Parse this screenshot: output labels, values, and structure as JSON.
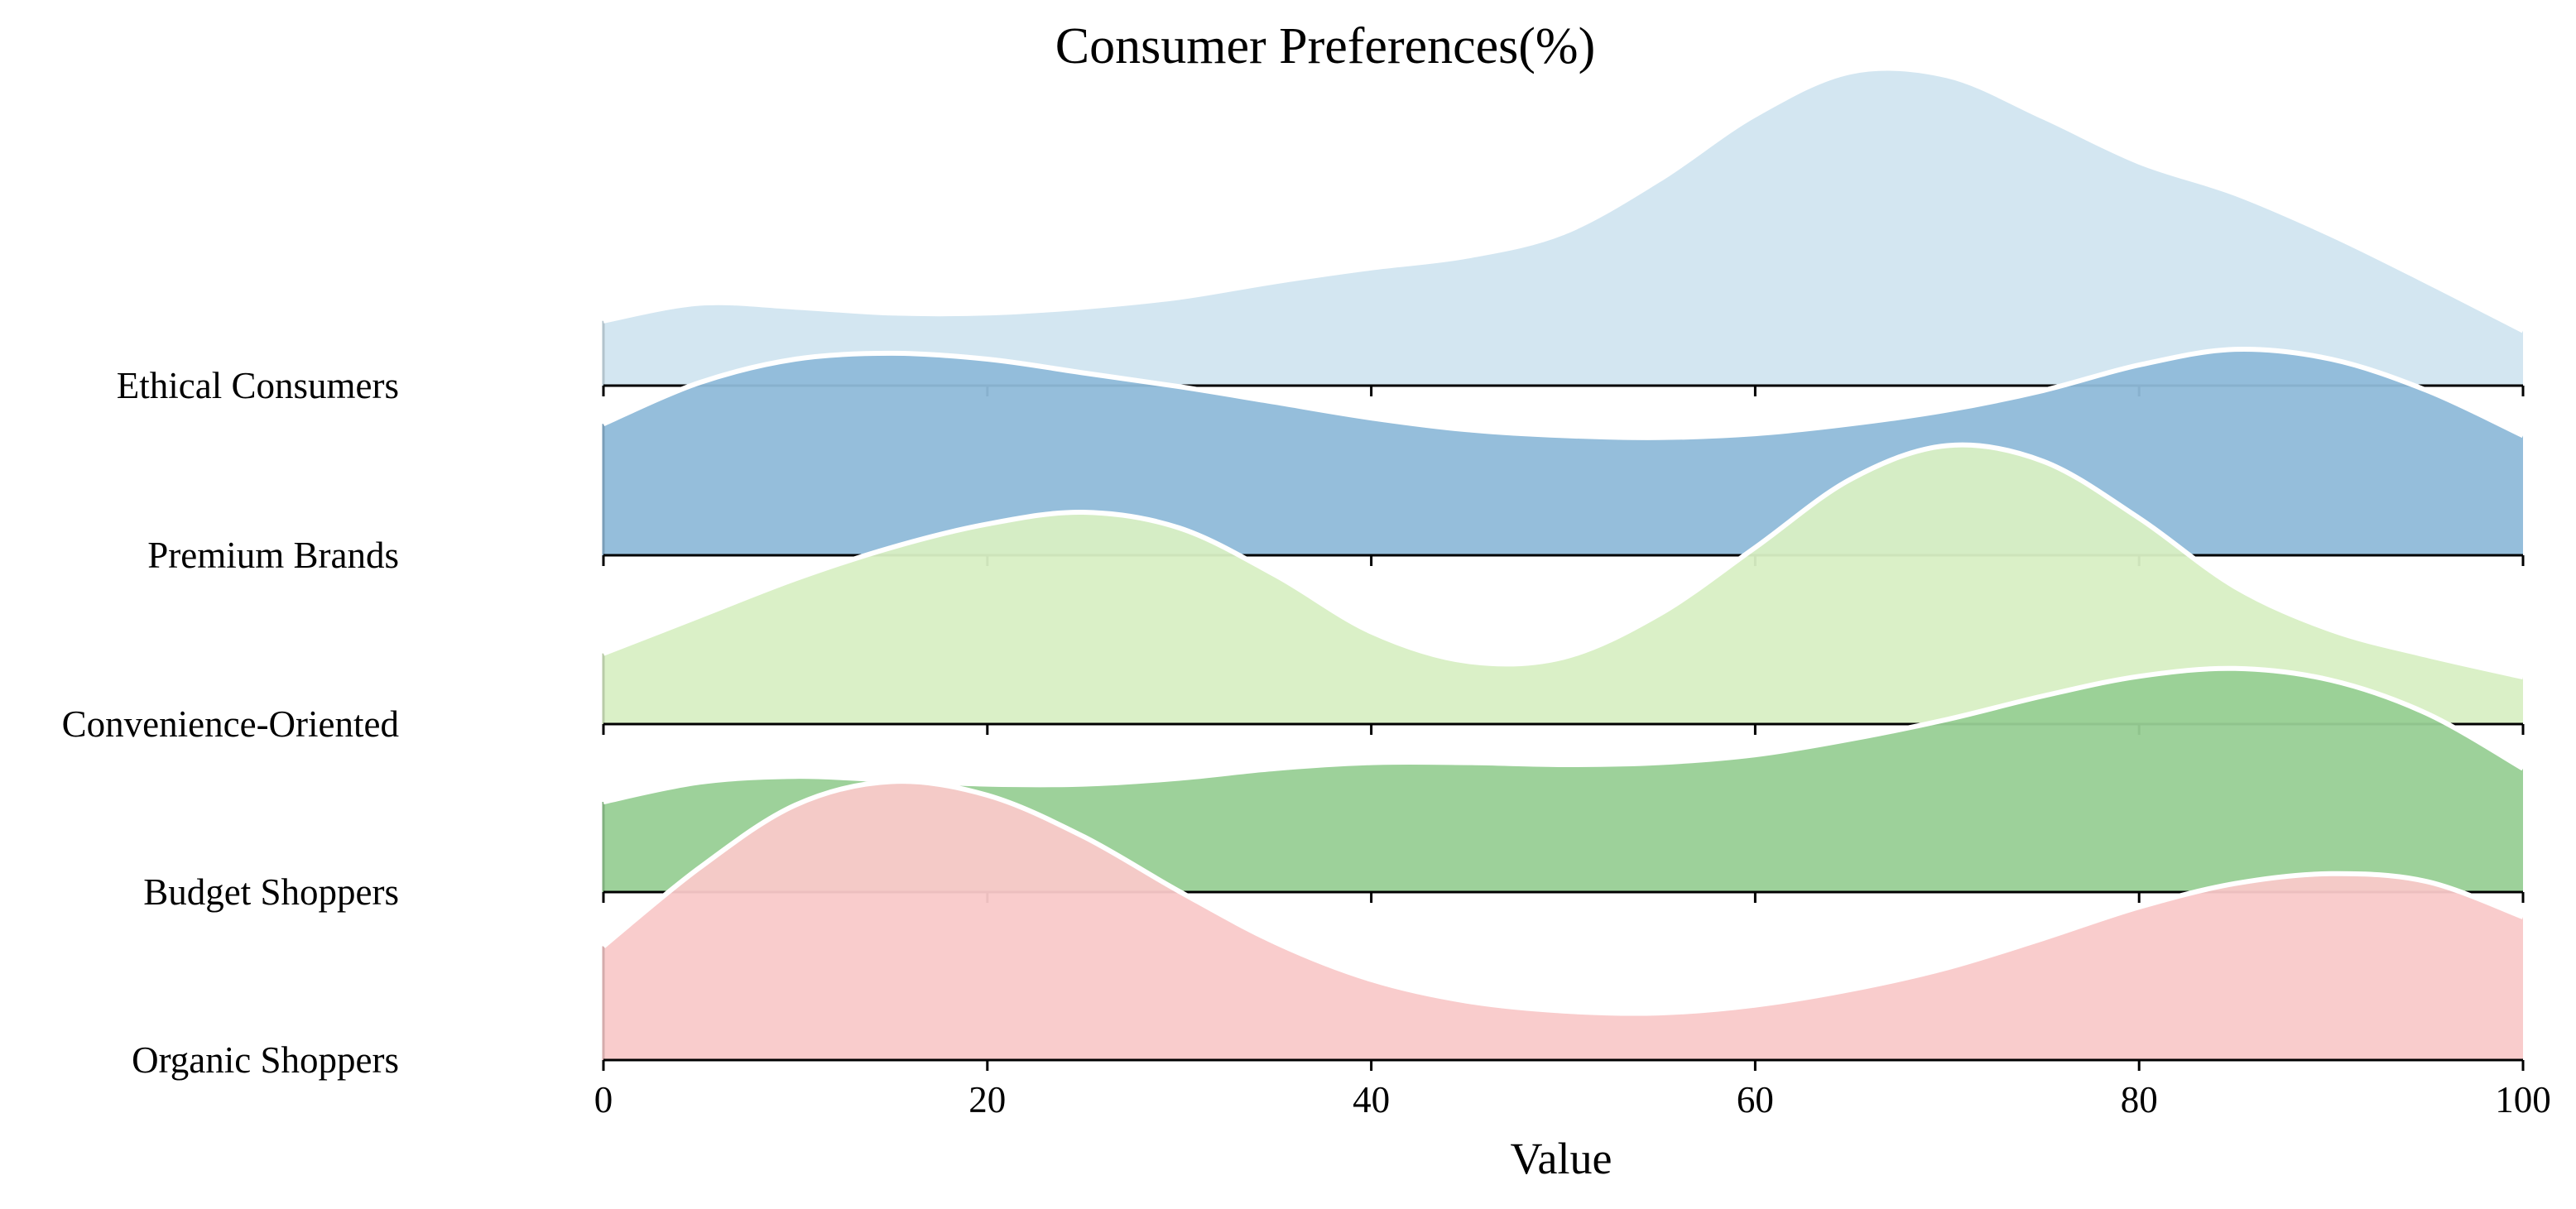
{
  "chart_data": {
    "type": "area",
    "subtype": "ridgeline",
    "title": "Consumer Preferences(%)",
    "xlabel": "Value",
    "ylabel": "",
    "xlim": [
      0,
      100
    ],
    "xticks": [
      0,
      20,
      40,
      60,
      80,
      100
    ],
    "xtick_labels": [
      "0",
      "20",
      "40",
      "60",
      "80",
      "100"
    ],
    "grid": false,
    "legend": "none",
    "x": [
      0,
      5,
      10,
      15,
      20,
      25,
      30,
      35,
      40,
      45,
      50,
      55,
      60,
      65,
      70,
      75,
      80,
      85,
      90,
      95,
      100
    ],
    "series": [
      {
        "name": "Ethical Consumers",
        "color": "#d1e5f0",
        "values": [
          0.33,
          0.42,
          0.4,
          0.37,
          0.37,
          0.4,
          0.45,
          0.53,
          0.6,
          0.66,
          0.78,
          1.05,
          1.38,
          1.6,
          1.58,
          1.37,
          1.14,
          0.98,
          0.77,
          0.53,
          0.28
        ]
      },
      {
        "name": "Premium Brands",
        "color": "#8fbad9",
        "values": [
          0.67,
          0.88,
          1.0,
          1.03,
          1.0,
          0.93,
          0.86,
          0.78,
          0.7,
          0.64,
          0.61,
          0.6,
          0.62,
          0.67,
          0.74,
          0.84,
          0.97,
          1.05,
          1.0,
          0.84,
          0.61
        ]
      },
      {
        "name": "Convenience-Oriented",
        "color": "#d8efc4",
        "values": [
          0.36,
          0.55,
          0.74,
          0.9,
          1.02,
          1.08,
          1.0,
          0.76,
          0.47,
          0.32,
          0.34,
          0.56,
          0.9,
          1.25,
          1.42,
          1.34,
          1.05,
          0.7,
          0.48,
          0.35,
          0.24
        ]
      },
      {
        "name": "Budget Shoppers",
        "color": "#98cf95",
        "values": [
          0.46,
          0.56,
          0.59,
          0.57,
          0.55,
          0.55,
          0.58,
          0.63,
          0.66,
          0.66,
          0.65,
          0.66,
          0.7,
          0.78,
          0.88,
          1.0,
          1.1,
          1.14,
          1.08,
          0.91,
          0.63
        ]
      },
      {
        "name": "Organic Shoppers",
        "color": "#f9c9c9",
        "values": [
          0.58,
          0.98,
          1.3,
          1.42,
          1.35,
          1.14,
          0.86,
          0.6,
          0.41,
          0.3,
          0.25,
          0.24,
          0.28,
          0.36,
          0.47,
          0.62,
          0.78,
          0.9,
          0.95,
          0.91,
          0.73
        ]
      }
    ]
  }
}
